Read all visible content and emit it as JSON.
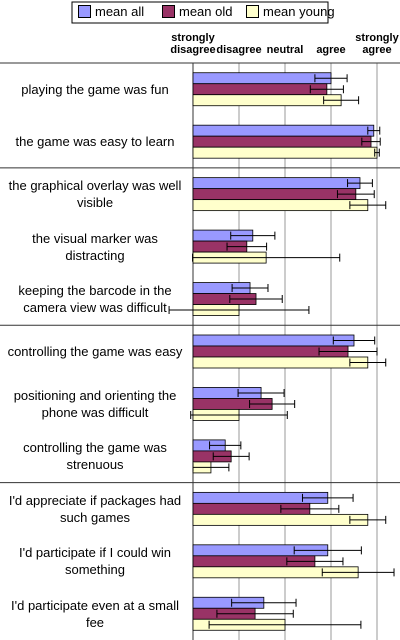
{
  "chart_data": {
    "type": "bar",
    "orientation": "horizontal",
    "categories": [
      "playing the game was fun",
      "the game was easy to learn",
      "the graphical overlay was well visible",
      "the visual marker was distracting",
      "keeping the barcode in the camera view was difficult",
      "controlling the game was easy",
      "positioning and orienting the phone was difficult",
      "controlling the game was strenuous",
      "I'd appreciate if packages had such games",
      "I'd participate if I could win something",
      "I'd participate even at a small fee"
    ],
    "series": [
      {
        "name": "mean all",
        "color": "#9999ff",
        "values": [
          4.0,
          4.93,
          4.63,
          2.3,
          2.24,
          4.5,
          2.48,
          1.7,
          3.93,
          3.93,
          2.54
        ],
        "errors": [
          0.35,
          0.13,
          0.27,
          0.48,
          0.39,
          0.45,
          0.5,
          0.34,
          0.55,
          0.73,
          0.7
        ]
      },
      {
        "name": "mean old",
        "color": "#993366",
        "values": [
          3.91,
          4.87,
          4.54,
          2.17,
          2.37,
          4.37,
          2.72,
          1.83,
          3.54,
          3.65,
          2.35
        ],
        "errors": [
          0.36,
          0.2,
          0.4,
          0.43,
          0.57,
          0.63,
          0.49,
          0.39,
          0.63,
          0.61,
          0.83
        ]
      },
      {
        "name": "mean young",
        "color": "#ffffcc",
        "values": [
          4.22,
          5.0,
          4.8,
          2.59,
          2.0,
          4.8,
          2.0,
          1.39,
          4.8,
          4.59,
          3.0
        ],
        "errors": [
          0.38,
          0.05,
          0.39,
          1.6,
          1.52,
          0.39,
          1.05,
          0.39,
          0.39,
          0.78,
          1.65
        ]
      }
    ],
    "xlim": [
      1,
      5
    ],
    "xticks": [
      {
        "value": 1,
        "label": "strongly disagree"
      },
      {
        "value": 2,
        "label": "disagree"
      },
      {
        "value": 3,
        "label": "neutral"
      },
      {
        "value": 4,
        "label": "agree"
      },
      {
        "value": 5,
        "label": "strongly agree"
      }
    ],
    "grid": true
  }
}
